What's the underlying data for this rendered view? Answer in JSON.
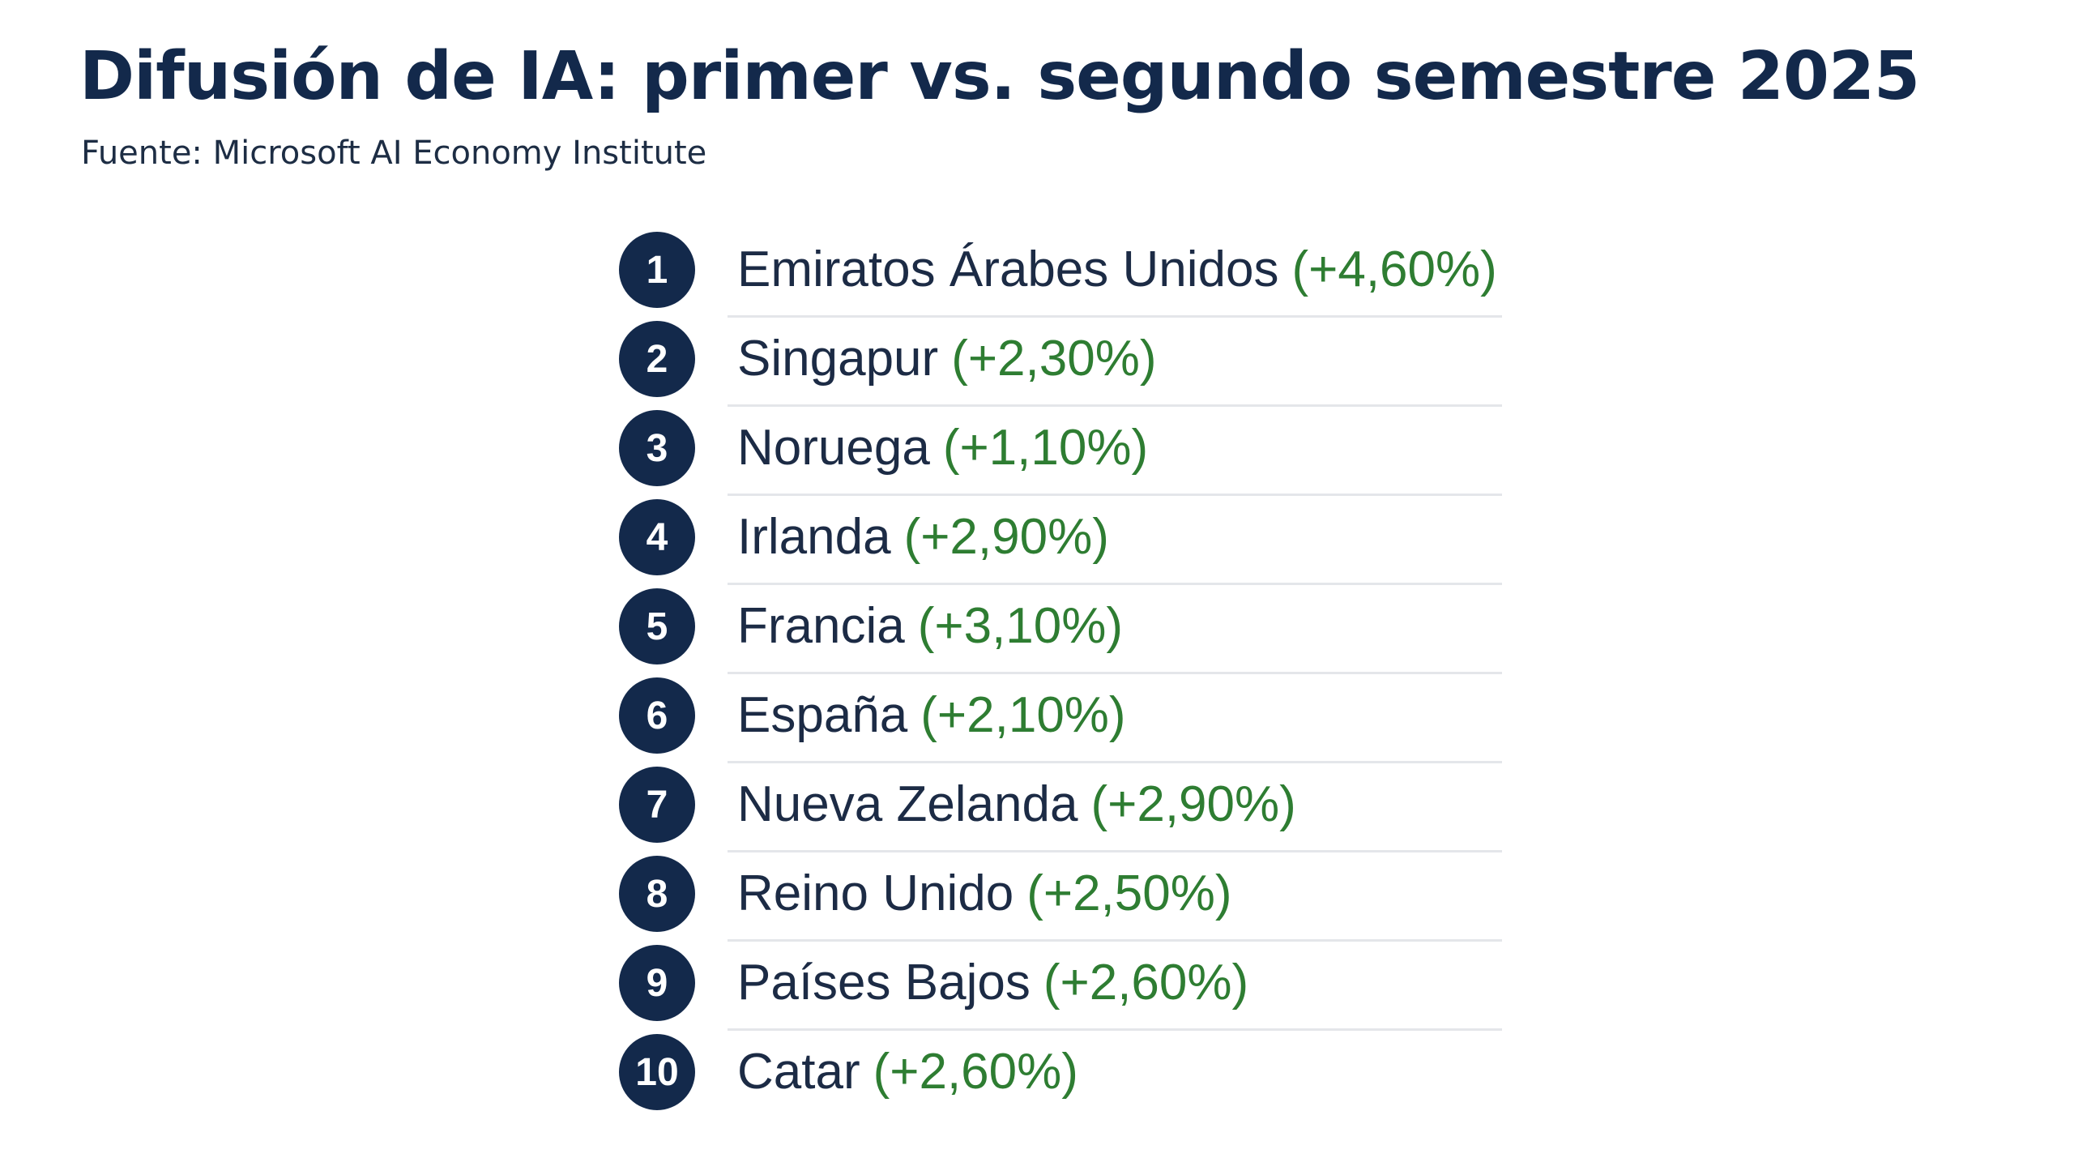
{
  "header": {
    "title": "Difusión de IA: primer vs. segundo semestre 2025",
    "source": "Fuente: Microsoft AI Economy Institute"
  },
  "colors": {
    "navy": "#13294b",
    "positive_change": "#2e7d32",
    "divider": "#e4e6ea"
  },
  "ranking": [
    {
      "rank": "1",
      "country": "Emiratos Árabes Unidos",
      "change": "(+4,60%)"
    },
    {
      "rank": "2",
      "country": "Singapur",
      "change": "(+2,30%)"
    },
    {
      "rank": "3",
      "country": "Noruega",
      "change": "(+1,10%)"
    },
    {
      "rank": "4",
      "country": "Irlanda",
      "change": "(+2,90%)"
    },
    {
      "rank": "5",
      "country": "Francia",
      "change": "(+3,10%)"
    },
    {
      "rank": "6",
      "country": "España",
      "change": "(+2,10%)"
    },
    {
      "rank": "7",
      "country": "Nueva Zelanda",
      "change": "(+2,90%)"
    },
    {
      "rank": "8",
      "country": "Reino Unido",
      "change": "(+2,50%)"
    },
    {
      "rank": "9",
      "country": "Países Bajos",
      "change": "(+2,60%)"
    },
    {
      "rank": "10",
      "country": "Catar",
      "change": "(+2,60%)"
    }
  ]
}
